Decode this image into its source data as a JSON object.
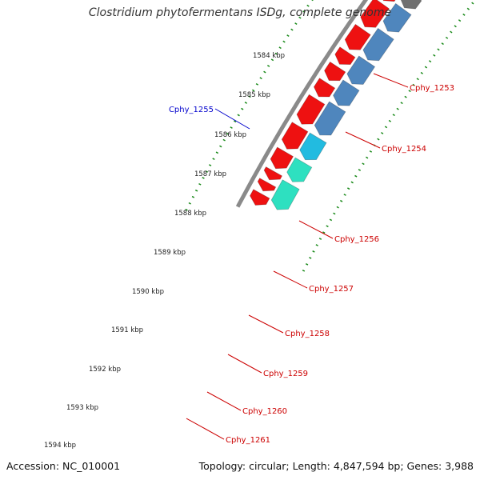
{
  "title": "Clostridium phytofermentans ISDg, complete genome",
  "footer": {
    "accession": "Accession: NC_010001",
    "summary": "Topology: circular; Length: 4,847,594 bp; Genes: 3,988"
  },
  "ticks": [
    {
      "label": "1584 kbp"
    },
    {
      "label": "1585 kbp"
    },
    {
      "label": "1586 kbp"
    },
    {
      "label": "1587 kbp"
    },
    {
      "label": "1588 kbp"
    },
    {
      "label": "1589 kbp"
    },
    {
      "label": "1590 kbp"
    },
    {
      "label": "1591 kbp"
    },
    {
      "label": "1592 kbp"
    },
    {
      "label": "1593 kbp"
    },
    {
      "label": "1594 kbp"
    }
  ],
  "gene_labels": [
    {
      "name": "Cphy_1253",
      "color": "#cc0000"
    },
    {
      "name": "Cphy_1254",
      "color": "#cc0000"
    },
    {
      "name": "Cphy_1255",
      "color": "#0000cc"
    },
    {
      "name": "Cphy_1256",
      "color": "#cc0000"
    },
    {
      "name": "Cphy_1257",
      "color": "#cc0000"
    },
    {
      "name": "Cphy_1258",
      "color": "#cc0000"
    },
    {
      "name": "Cphy_1259",
      "color": "#cc0000"
    },
    {
      "name": "Cphy_1260",
      "color": "#cc0000"
    },
    {
      "name": "Cphy_1261",
      "color": "#cc0000"
    }
  ],
  "colors": {
    "backbone": "#8a8a8a",
    "cds_red": "#ee1111",
    "cds_blue": "#4f86bd",
    "cds_cyan": "#22bbe0",
    "cds_teal": "#2ee0c0",
    "cds_gray": "#707070",
    "cds_olive": "#c8c27a",
    "cds_navy": "#0a0aee",
    "tick_green": "#1a8a1a"
  }
}
